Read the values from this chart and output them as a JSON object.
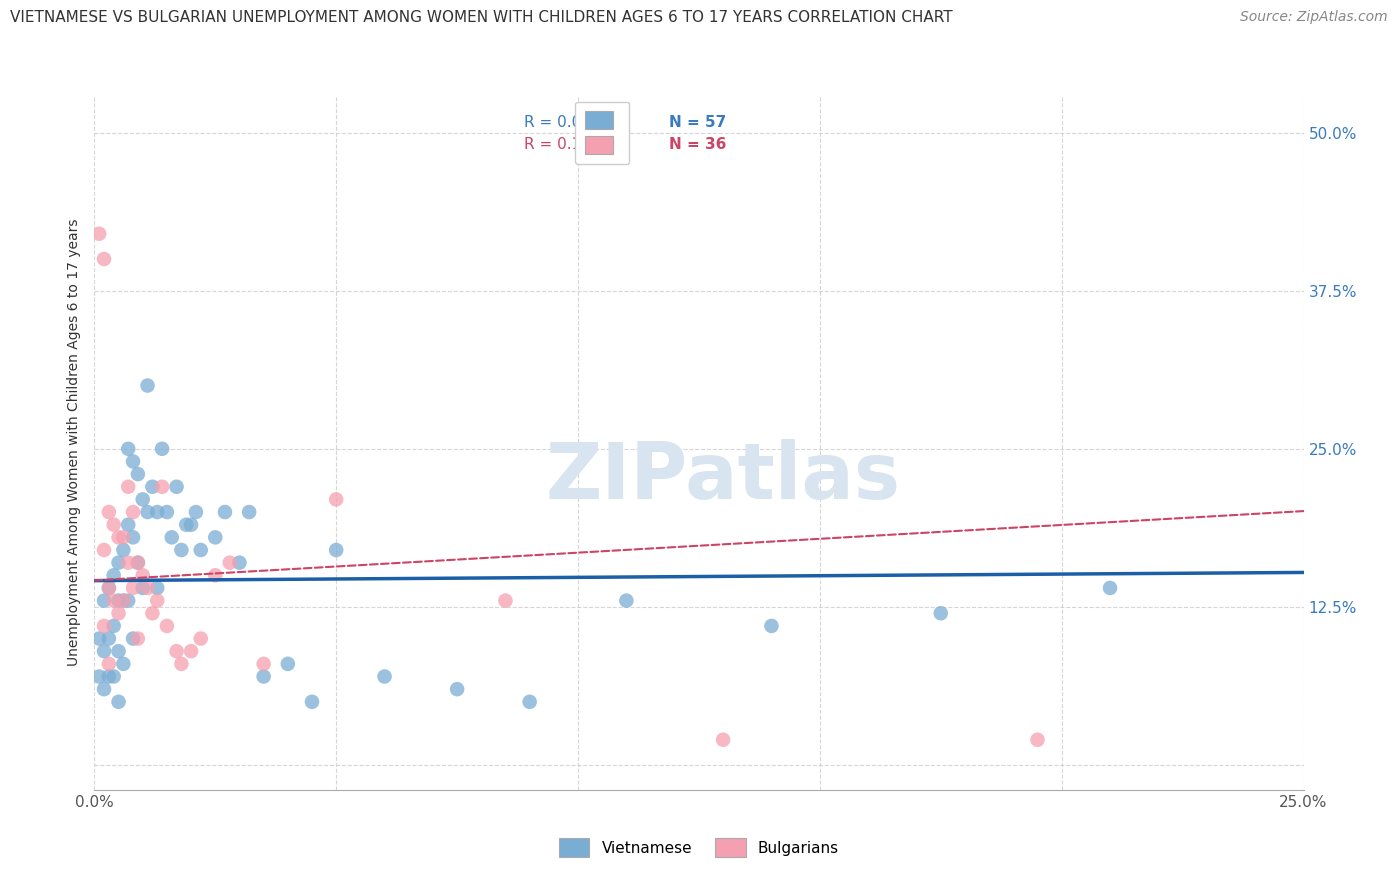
{
  "title": "VIETNAMESE VS BULGARIAN UNEMPLOYMENT AMONG WOMEN WITH CHILDREN AGES 6 TO 17 YEARS CORRELATION CHART",
  "source": "Source: ZipAtlas.com",
  "ylabel": "Unemployment Among Women with Children Ages 6 to 17 years",
  "xlim": [
    0.0,
    0.25
  ],
  "ylim": [
    -0.02,
    0.53
  ],
  "xticks": [
    0.0,
    0.05,
    0.1,
    0.15,
    0.2,
    0.25
  ],
  "xtick_labels": [
    "0.0%",
    "",
    "",
    "",
    "",
    "25.0%"
  ],
  "yticks": [
    0.0,
    0.125,
    0.25,
    0.375,
    0.5
  ],
  "ytick_labels_right": [
    "",
    "12.5%",
    "25.0%",
    "37.5%",
    "50.0%"
  ],
  "background_color": "#ffffff",
  "grid_color": "#cccccc",
  "watermark": "ZIPatlas",
  "legend_R_viet": "R = 0.018",
  "legend_N_viet": "N = 57",
  "legend_R_bulg": "R = 0.106",
  "legend_N_bulg": "N = 36",
  "viet_color": "#7aadd4",
  "bulg_color": "#f5a0b0",
  "viet_line_color": "#1a5fa8",
  "bulg_line_color": "#cc4466",
  "viet_scatter_x": [
    0.001,
    0.001,
    0.002,
    0.002,
    0.002,
    0.003,
    0.003,
    0.003,
    0.004,
    0.004,
    0.004,
    0.005,
    0.005,
    0.005,
    0.005,
    0.006,
    0.006,
    0.006,
    0.007,
    0.007,
    0.007,
    0.008,
    0.008,
    0.008,
    0.009,
    0.009,
    0.01,
    0.01,
    0.011,
    0.011,
    0.012,
    0.013,
    0.013,
    0.014,
    0.015,
    0.016,
    0.017,
    0.018,
    0.019,
    0.02,
    0.021,
    0.022,
    0.025,
    0.027,
    0.03,
    0.032,
    0.035,
    0.04,
    0.045,
    0.05,
    0.06,
    0.075,
    0.09,
    0.11,
    0.14,
    0.175,
    0.21
  ],
  "viet_scatter_y": [
    0.1,
    0.07,
    0.13,
    0.09,
    0.06,
    0.14,
    0.1,
    0.07,
    0.15,
    0.11,
    0.07,
    0.16,
    0.13,
    0.09,
    0.05,
    0.17,
    0.13,
    0.08,
    0.25,
    0.19,
    0.13,
    0.24,
    0.18,
    0.1,
    0.23,
    0.16,
    0.21,
    0.14,
    0.3,
    0.2,
    0.22,
    0.2,
    0.14,
    0.25,
    0.2,
    0.18,
    0.22,
    0.17,
    0.19,
    0.19,
    0.2,
    0.17,
    0.18,
    0.2,
    0.16,
    0.2,
    0.07,
    0.08,
    0.05,
    0.17,
    0.07,
    0.06,
    0.05,
    0.13,
    0.11,
    0.12,
    0.14
  ],
  "bulg_scatter_x": [
    0.001,
    0.002,
    0.002,
    0.002,
    0.003,
    0.003,
    0.003,
    0.004,
    0.004,
    0.005,
    0.005,
    0.006,
    0.006,
    0.007,
    0.007,
    0.008,
    0.008,
    0.009,
    0.009,
    0.01,
    0.011,
    0.012,
    0.013,
    0.014,
    0.015,
    0.017,
    0.018,
    0.02,
    0.022,
    0.025,
    0.028,
    0.035,
    0.05,
    0.085,
    0.13,
    0.195
  ],
  "bulg_scatter_y": [
    0.42,
    0.4,
    0.17,
    0.11,
    0.2,
    0.14,
    0.08,
    0.19,
    0.13,
    0.18,
    0.12,
    0.18,
    0.13,
    0.22,
    0.16,
    0.2,
    0.14,
    0.16,
    0.1,
    0.15,
    0.14,
    0.12,
    0.13,
    0.22,
    0.11,
    0.09,
    0.08,
    0.09,
    0.1,
    0.15,
    0.16,
    0.08,
    0.21,
    0.13,
    0.02,
    0.02
  ]
}
